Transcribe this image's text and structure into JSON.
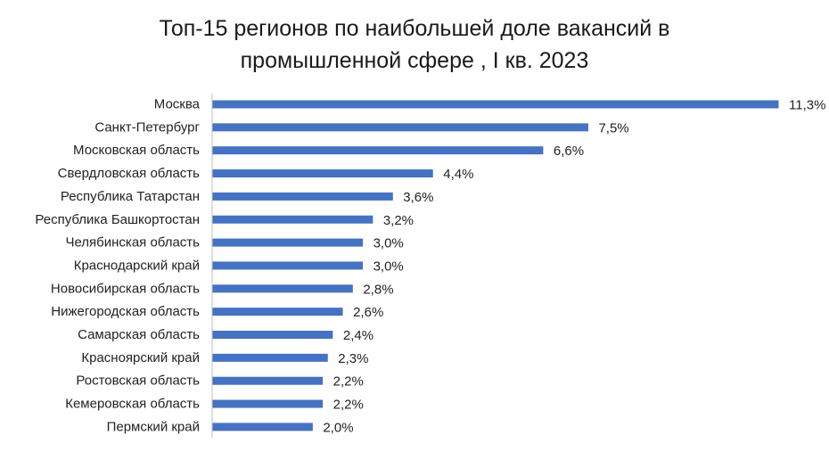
{
  "chart_data": {
    "type": "bar",
    "orientation": "horizontal",
    "title_lines": [
      "Топ-15 регионов по наибольшей доле вакансий в",
      "промышленной сфере , I кв. 2023"
    ],
    "categories": [
      "Москва",
      "Санкт-Петербург",
      "Московская область",
      "Свердловская область",
      "Республика Татарстан",
      "Республика Башкортостан",
      "Челябинская область",
      "Краснодарский край",
      "Новосибирская область",
      "Нижегородская область",
      "Самарская область",
      "Красноярский край",
      "Ростовская область",
      "Кемеровская область",
      "Пермский край"
    ],
    "values": [
      11.3,
      7.5,
      6.6,
      4.4,
      3.6,
      3.2,
      3.0,
      3.0,
      2.8,
      2.6,
      2.4,
      2.3,
      2.2,
      2.2,
      2.0
    ],
    "value_labels": [
      "11,3%",
      "7,5%",
      "6,6%",
      "4,4%",
      "3,6%",
      "3,2%",
      "3,0%",
      "3,0%",
      "2,8%",
      "2,6%",
      "2,4%",
      "2,3%",
      "2,2%",
      "2,2%",
      "2,0%"
    ],
    "unit": "%",
    "xlim": [
      0,
      11.3
    ],
    "grid": false,
    "legend": "none",
    "bar_color": "#4472c4",
    "axis_color": "#bfbfbf"
  }
}
